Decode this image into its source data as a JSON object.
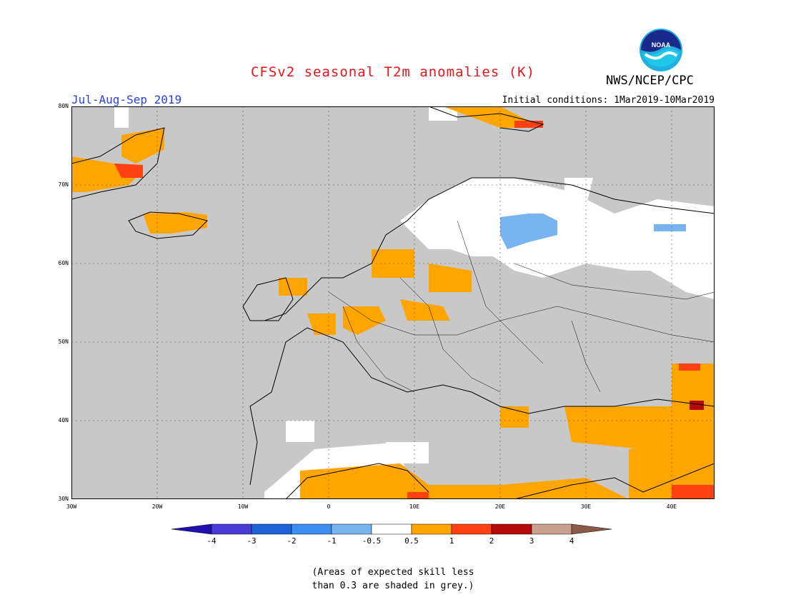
{
  "header": {
    "title": "CFSv2 seasonal T2m anomalies (K)",
    "season": "Jul-Aug-Sep 2019",
    "initial_conditions": "Initial conditions: 1Mar2019-10Mar2019",
    "agency": "NWS/NCEP/CPC",
    "logo_text": "NOAA"
  },
  "map": {
    "region": "Europe",
    "lon_range": [
      -30,
      45
    ],
    "lat_range": [
      30,
      80
    ],
    "lat_labels": [
      "80N",
      "70N",
      "60N",
      "50N",
      "40N",
      "30N"
    ],
    "lon_labels": [
      "30W",
      "20W",
      "10W",
      "0",
      "10E",
      "20E",
      "30E",
      "40E"
    ],
    "grey_color": "#c8c8c8"
  },
  "colorbar": {
    "labels": [
      "-4",
      "-3",
      "-2",
      "-1",
      "-0.5",
      "0.5",
      "1",
      "2",
      "3",
      "4"
    ],
    "colors": [
      "#2010b0",
      "#4a3ad8",
      "#1e64d8",
      "#3c8ef0",
      "#78b4f0",
      "#ffffff",
      "#ffa500",
      "#ff4010",
      "#b40a0a",
      "#c8a090",
      "#8c5a46"
    ]
  },
  "footer": {
    "note_line1": "(Areas of expected skill less",
    "note_line2": "than 0.3 are shaded in grey.)"
  }
}
